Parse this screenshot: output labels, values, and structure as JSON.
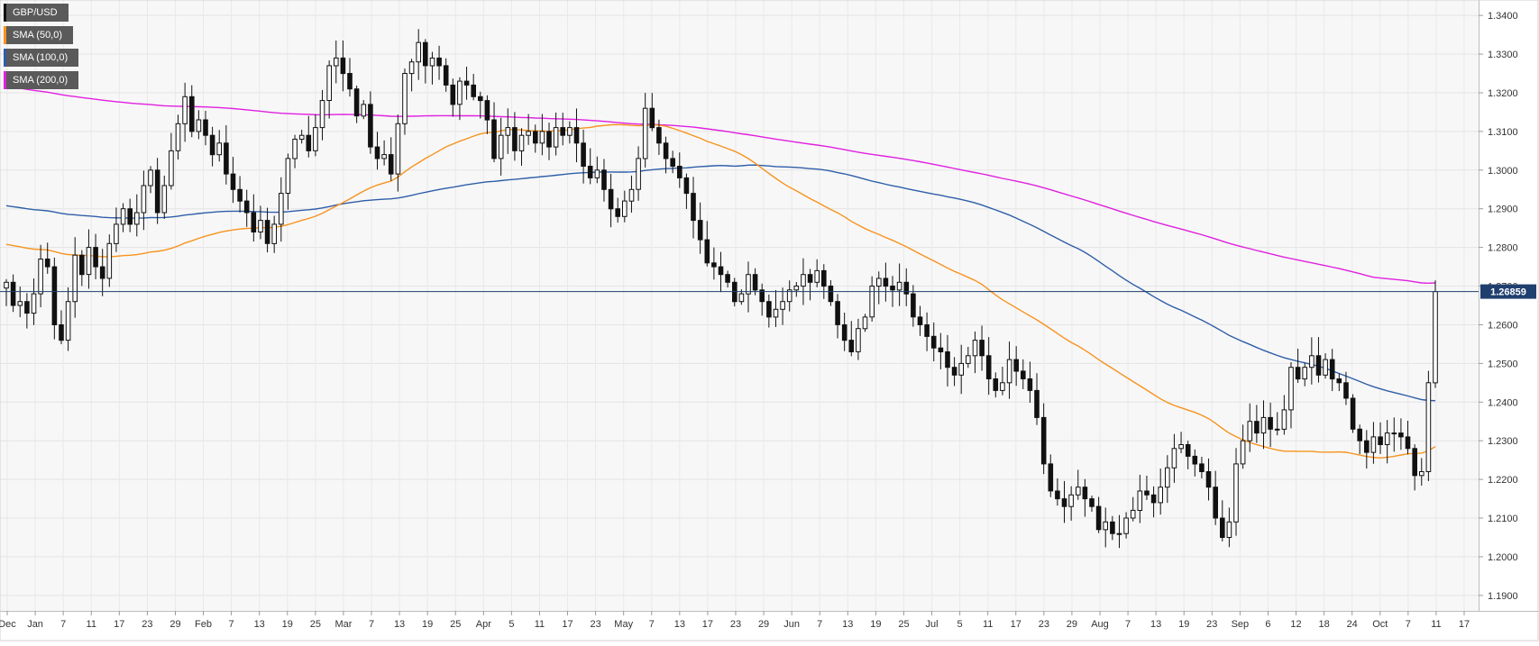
{
  "chart_data": {
    "type": "candlestick",
    "symbol": "GBP/USD",
    "legend": [
      {
        "name": "GBP/USD",
        "color": "#111111"
      },
      {
        "name": "SMA (50,0)",
        "color": "#f7931e"
      },
      {
        "name": "SMA (100,0)",
        "color": "#2e5ea8"
      },
      {
        "name": "SMA (200,0)",
        "color": "#e020e0"
      }
    ],
    "last_price": "1.26859",
    "ylim": [
      1.186,
      1.344
    ],
    "y_ticks": [
      "1.1900",
      "1.2000",
      "1.2100",
      "1.2200",
      "1.2300",
      "1.2400",
      "1.2500",
      "1.2600",
      "1.2700",
      "1.2800",
      "1.2900",
      "1.3000",
      "1.3100",
      "1.3200",
      "1.3300",
      "1.3400"
    ],
    "x_ticks": [
      "Dec",
      "Jan",
      "7",
      "11",
      "17",
      "23",
      "29",
      "Feb",
      "7",
      "13",
      "19",
      "25",
      "Mar",
      "7",
      "13",
      "19",
      "25",
      "Apr",
      "5",
      "11",
      "17",
      "23",
      "May",
      "7",
      "13",
      "17",
      "23",
      "29",
      "Jun",
      "7",
      "13",
      "19",
      "25",
      "Jul",
      "5",
      "11",
      "17",
      "23",
      "29",
      "Aug",
      "7",
      "13",
      "19",
      "23",
      "Sep",
      "6",
      "12",
      "18",
      "24",
      "Oct",
      "7",
      "11",
      "17"
    ],
    "price_path": [
      [
        1.271,
        1.265,
        1.266,
        1.263,
        1.268,
        1.277,
        1.275,
        1.26,
        1.256,
        1.266,
        1.278,
        1.273,
        1.28,
        1.275,
        1.272,
        1.281,
        1.286,
        1.29,
        1.286,
        1.289,
        1.296,
        1.3,
        1.289,
        1.296,
        1.305
      ],
      [
        1.312,
        1.319,
        1.31,
        1.313,
        1.309,
        1.304,
        1.307,
        1.299,
        1.295,
        1.292,
        1.289,
        1.284,
        1.287,
        1.281,
        1.286,
        1.294,
        1.303,
        1.308,
        1.309,
        1.305,
        1.311,
        1.318,
        1.327,
        1.329
      ],
      [
        1.325,
        1.321,
        1.314,
        1.317,
        1.306,
        1.303,
        1.304,
        1.299,
        1.312,
        1.325,
        1.328,
        1.333,
        1.327,
        1.329,
        1.327,
        1.322,
        1.317,
        1.323,
        1.322,
        1.319,
        1.318,
        1.313,
        1.303,
        1.309
      ],
      [
        1.311,
        1.305,
        1.309,
        1.31,
        1.307,
        1.31,
        1.306,
        1.311,
        1.309,
        1.311,
        1.307,
        1.301,
        1.298,
        1.3,
        1.295,
        1.29,
        1.288,
        1.292,
        1.295,
        1.303,
        1.316,
        1.311,
        1.307,
        1.303
      ],
      [
        1.301,
        1.298,
        1.294,
        1.287,
        1.282,
        1.276,
        1.275,
        1.273,
        1.271,
        1.266,
        1.268,
        1.273,
        1.269,
        1.266,
        1.262,
        1.264,
        1.266,
        1.269,
        1.27,
        1.273,
        1.271,
        1.274,
        1.27,
        1.266,
        1.26
      ],
      [
        1.256,
        1.253,
        1.259,
        1.262,
        1.27,
        1.272,
        1.27,
        1.269,
        1.271,
        1.268,
        1.262,
        1.26,
        1.257,
        1.254,
        1.253,
        1.249,
        1.247,
        1.25,
        1.252,
        1.256,
        1.252,
        1.246,
        1.243,
        1.245,
        1.251,
        1.248,
        1.246,
        1.243,
        1.236
      ],
      [
        1.224,
        1.217,
        1.215,
        1.213,
        1.216,
        1.218,
        1.215,
        1.213,
        1.207,
        1.209,
        1.206,
        1.206,
        1.21,
        1.212,
        1.217,
        1.216,
        1.214,
        1.218,
        1.223,
        1.228,
        1.229,
        1.226,
        1.224,
        1.222,
        1.218,
        1.21,
        1.205,
        1.209,
        1.224
      ],
      [
        1.23,
        1.235,
        1.232,
        1.236,
        1.233,
        1.233,
        1.238,
        1.249,
        1.246,
        1.249,
        1.252,
        1.247,
        1.251,
        1.246,
        1.245,
        1.241,
        1.233,
        1.23,
        1.227,
        1.231,
        1.229,
        1.232,
        1.232,
        1.231,
        1.228,
        1.221,
        1.222,
        1.245,
        1.2686
      ]
    ]
  }
}
